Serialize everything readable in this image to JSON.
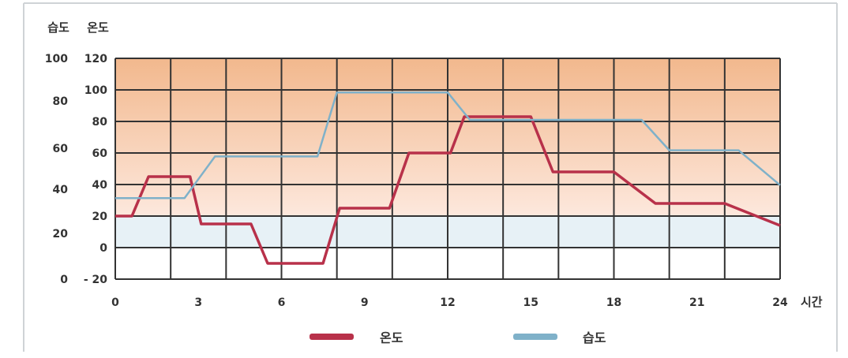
{
  "chart_data": {
    "type": "line",
    "title": "",
    "xlabel": "시간",
    "x_ticks": [
      0,
      3,
      6,
      9,
      12,
      15,
      18,
      21,
      24
    ],
    "xlim": [
      0,
      24
    ],
    "left_axes": {
      "humidity": {
        "label": "습도",
        "ticks": [
          "100",
          "80",
          "60",
          "40",
          "20",
          "0"
        ],
        "range": [
          0,
          100
        ]
      },
      "temperature": {
        "label": "온도",
        "ticks": [
          "120",
          "100",
          "80",
          "60",
          "40",
          "20",
          "0",
          "- 20"
        ],
        "range": [
          -20,
          120
        ]
      }
    },
    "grid": true,
    "background_bands": {
      "warm_top": "#f2b88d",
      "warm_bottom": "#fde8dd",
      "cool": "#e7f1f6",
      "plain": "#ffffff"
    },
    "legend": {
      "placement": "bottom"
    },
    "series": [
      {
        "name": "온도",
        "axis": "temperature",
        "color": "#b8314a",
        "points": [
          [
            0,
            20
          ],
          [
            0.6,
            20
          ],
          [
            1.2,
            45
          ],
          [
            2.7,
            45
          ],
          [
            3.1,
            15
          ],
          [
            4.9,
            15
          ],
          [
            5.5,
            -10
          ],
          [
            7.5,
            -10
          ],
          [
            8.1,
            25
          ],
          [
            9.9,
            25
          ],
          [
            10.6,
            60
          ],
          [
            12.1,
            60
          ],
          [
            12.6,
            83
          ],
          [
            15.0,
            83
          ],
          [
            15.8,
            48
          ],
          [
            18.0,
            48
          ],
          [
            19.5,
            28
          ],
          [
            22.0,
            28
          ],
          [
            24.0,
            14
          ]
        ]
      },
      {
        "name": "습도",
        "axis": "humidity",
        "color": "#7fb1c9",
        "points": [
          [
            0,
            36
          ],
          [
            2.5,
            36
          ],
          [
            3.6,
            56
          ],
          [
            7.3,
            56
          ],
          [
            8.0,
            84
          ],
          [
            12.0,
            84
          ],
          [
            12.8,
            72
          ],
          [
            19.0,
            72
          ],
          [
            20.0,
            59
          ],
          [
            22.5,
            59
          ],
          [
            24.0,
            42
          ]
        ]
      }
    ]
  }
}
